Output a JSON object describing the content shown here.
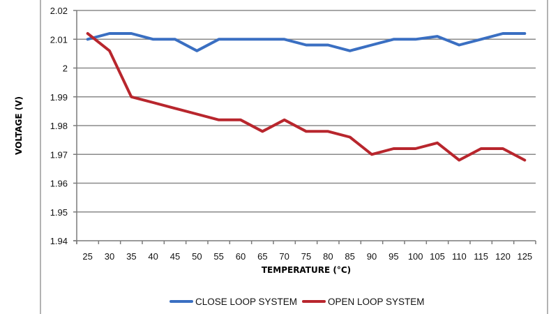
{
  "chart_data": {
    "type": "line",
    "title": "",
    "xlabel": "TEMPERATURE (°C)",
    "ylabel": "VOLTAGE (V)",
    "categories": [
      "25",
      "30",
      "35",
      "40",
      "45",
      "50",
      "55",
      "60",
      "65",
      "70",
      "75",
      "80",
      "85",
      "90",
      "95",
      "100",
      "105",
      "110",
      "115",
      "120",
      "125"
    ],
    "ylim": [
      1.94,
      2.02
    ],
    "yticks": [
      "1.94",
      "1.95",
      "1.96",
      "1.97",
      "1.98",
      "1.99",
      "2",
      "2.01",
      "2.02"
    ],
    "ytick_values": [
      1.94,
      1.95,
      1.96,
      1.97,
      1.98,
      1.99,
      2.0,
      2.01,
      2.02
    ],
    "grid": true,
    "legend_position": "bottom",
    "series": [
      {
        "name": "CLOSE LOOP SYSTEM",
        "color": "#3a6fc2",
        "values": [
          2.01,
          2.012,
          2.012,
          2.01,
          2.01,
          2.006,
          2.01,
          2.01,
          2.01,
          2.01,
          2.008,
          2.008,
          2.006,
          2.008,
          2.01,
          2.01,
          2.011,
          2.008,
          2.01,
          2.012,
          2.012
        ]
      },
      {
        "name": "OPEN LOOP SYSTEM",
        "color": "#b8262d",
        "values": [
          2.012,
          2.006,
          1.99,
          1.988,
          1.986,
          1.984,
          1.982,
          1.982,
          1.978,
          1.982,
          1.978,
          1.978,
          1.976,
          1.97,
          1.972,
          1.972,
          1.974,
          1.968,
          1.972,
          1.972,
          1.968
        ]
      }
    ]
  }
}
